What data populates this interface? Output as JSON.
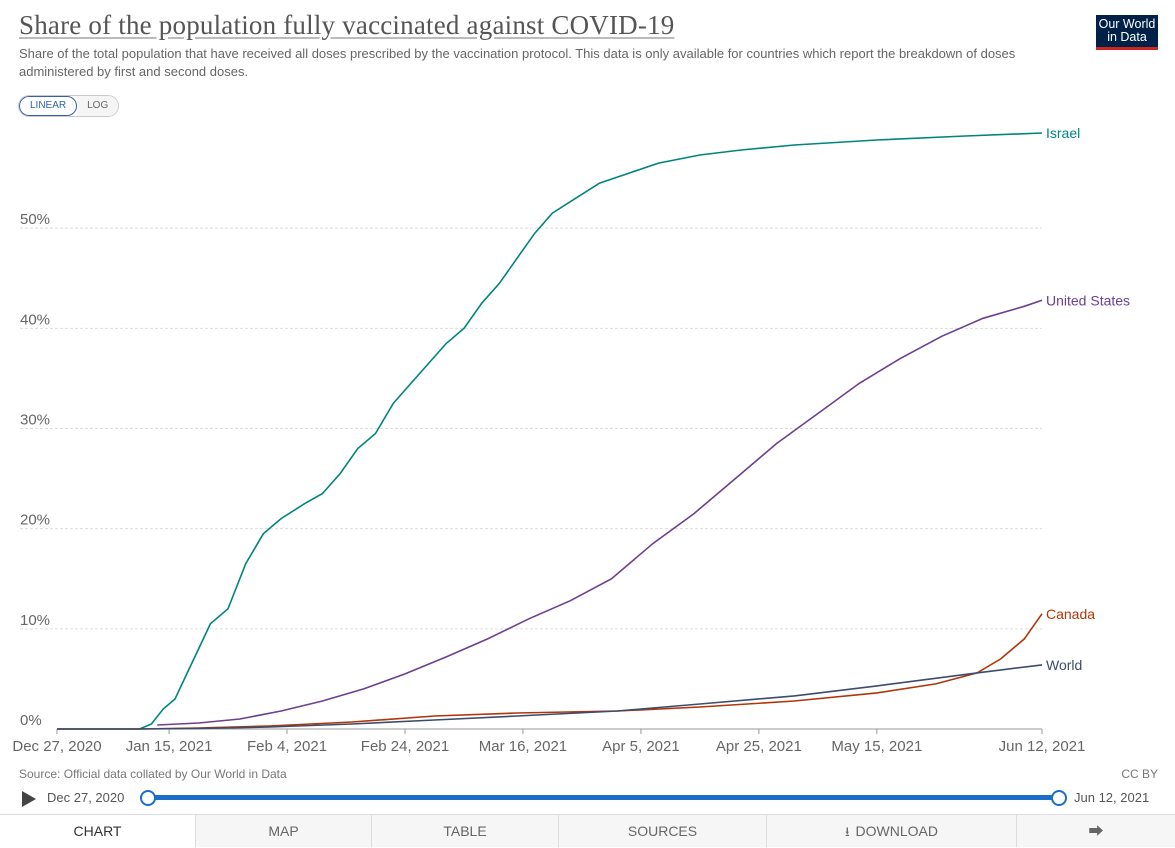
{
  "header": {
    "title": "Share of the population fully vaccinated against COVID-19",
    "subtitle": "Share of the total population that have received all doses prescribed by the vaccination protocol. This data is only available for countries which report the breakdown of doses administered by first and second doses.",
    "logo_line1": "Our World",
    "logo_line2": "in Data"
  },
  "controls": {
    "linear_label": "LINEAR",
    "log_label": "LOG",
    "selected": "LINEAR"
  },
  "footer": {
    "source": "Source: Official data collated by Our World in Data",
    "license": "CC BY"
  },
  "timeline": {
    "start_label": "Dec 27, 2020",
    "end_label": "Jun 12, 2021",
    "start_value": "Dec 27, 2020",
    "end_value": "Jun 12, 2021"
  },
  "tabs": [
    {
      "label": "CHART",
      "active": true
    },
    {
      "label": "MAP",
      "active": false
    },
    {
      "label": "TABLE",
      "active": false
    },
    {
      "label": "SOURCES",
      "active": false
    },
    {
      "label": "DOWNLOAD",
      "active": false,
      "icon": "download-icon"
    },
    {
      "label": "",
      "active": false,
      "icon": "share-icon"
    }
  ],
  "chart_data": {
    "type": "line",
    "title": "Share of the population fully vaccinated against COVID-19",
    "xlabel": "",
    "ylabel": "",
    "x_ticks": [
      "Dec 27, 2020",
      "Jan 15, 2021",
      "Feb 4, 2021",
      "Feb 24, 2021",
      "Mar 16, 2021",
      "Apr 5, 2021",
      "Apr 25, 2021",
      "May 15, 2021",
      "Jun 12, 2021"
    ],
    "y_ticks": [
      "0%",
      "10%",
      "20%",
      "30%",
      "40%",
      "50%"
    ],
    "y_tick_values": [
      0,
      10,
      20,
      30,
      40,
      50
    ],
    "xlim": [
      "2020-12-27",
      "2021-06-12"
    ],
    "ylim": [
      0,
      60
    ],
    "grid": "horizontal dashed",
    "legend": "line-end labels",
    "series": [
      {
        "name": "Israel",
        "color": "#00847e",
        "points": [
          [
            "2020-12-27",
            0
          ],
          [
            "2021-01-10",
            0
          ],
          [
            "2021-01-12",
            0.5
          ],
          [
            "2021-01-14",
            2
          ],
          [
            "2021-01-16",
            3
          ],
          [
            "2021-01-18",
            5.5
          ],
          [
            "2021-01-20",
            8
          ],
          [
            "2021-01-22",
            10.5
          ],
          [
            "2021-01-25",
            12
          ],
          [
            "2021-01-28",
            16.5
          ],
          [
            "2021-01-31",
            19.5
          ],
          [
            "2021-02-03",
            21
          ],
          [
            "2021-02-07",
            22.5
          ],
          [
            "2021-02-10",
            23.5
          ],
          [
            "2021-02-13",
            25.5
          ],
          [
            "2021-02-16",
            28
          ],
          [
            "2021-02-19",
            29.5
          ],
          [
            "2021-02-22",
            32.5
          ],
          [
            "2021-02-25",
            34.5
          ],
          [
            "2021-02-28",
            36.5
          ],
          [
            "2021-03-03",
            38.5
          ],
          [
            "2021-03-06",
            40
          ],
          [
            "2021-03-09",
            42.5
          ],
          [
            "2021-03-12",
            44.5
          ],
          [
            "2021-03-15",
            47
          ],
          [
            "2021-03-18",
            49.5
          ],
          [
            "2021-03-21",
            51.5
          ],
          [
            "2021-03-25",
            53
          ],
          [
            "2021-03-29",
            54.5
          ],
          [
            "2021-04-03",
            55.5
          ],
          [
            "2021-04-08",
            56.5
          ],
          [
            "2021-04-15",
            57.3
          ],
          [
            "2021-04-22",
            57.8
          ],
          [
            "2021-05-01",
            58.3
          ],
          [
            "2021-05-15",
            58.8
          ],
          [
            "2021-05-30",
            59.2
          ],
          [
            "2021-06-12",
            59.5
          ]
        ]
      },
      {
        "name": "United States",
        "color": "#6d3e91",
        "points": [
          [
            "2021-01-13",
            0.4
          ],
          [
            "2021-01-20",
            0.6
          ],
          [
            "2021-01-27",
            1
          ],
          [
            "2021-02-03",
            1.8
          ],
          [
            "2021-02-10",
            2.8
          ],
          [
            "2021-02-17",
            4
          ],
          [
            "2021-02-24",
            5.5
          ],
          [
            "2021-03-03",
            7.2
          ],
          [
            "2021-03-10",
            9
          ],
          [
            "2021-03-17",
            11
          ],
          [
            "2021-03-24",
            12.8
          ],
          [
            "2021-03-31",
            15
          ],
          [
            "2021-04-07",
            18.5
          ],
          [
            "2021-04-14",
            21.5
          ],
          [
            "2021-04-21",
            25
          ],
          [
            "2021-04-28",
            28.5
          ],
          [
            "2021-05-05",
            31.5
          ],
          [
            "2021-05-12",
            34.5
          ],
          [
            "2021-05-19",
            37
          ],
          [
            "2021-05-26",
            39.2
          ],
          [
            "2021-06-02",
            41
          ],
          [
            "2021-06-09",
            42.2
          ],
          [
            "2021-06-12",
            42.8
          ]
        ]
      },
      {
        "name": "Canada",
        "color": "#b13507",
        "points": [
          [
            "2020-12-27",
            0
          ],
          [
            "2021-01-10",
            0
          ],
          [
            "2021-01-20",
            0.1
          ],
          [
            "2021-02-01",
            0.3
          ],
          [
            "2021-02-15",
            0.7
          ],
          [
            "2021-03-01",
            1.3
          ],
          [
            "2021-03-15",
            1.6
          ],
          [
            "2021-04-01",
            1.8
          ],
          [
            "2021-04-15",
            2.2
          ],
          [
            "2021-05-01",
            2.8
          ],
          [
            "2021-05-15",
            3.6
          ],
          [
            "2021-05-25",
            4.5
          ],
          [
            "2021-06-01",
            5.6
          ],
          [
            "2021-06-05",
            7
          ],
          [
            "2021-06-09",
            9
          ],
          [
            "2021-06-12",
            11.5
          ]
        ]
      },
      {
        "name": "World",
        "color": "#3c4c6d",
        "points": [
          [
            "2020-12-27",
            0
          ],
          [
            "2021-01-10",
            0
          ],
          [
            "2021-01-20",
            0.05
          ],
          [
            "2021-02-01",
            0.2
          ],
          [
            "2021-02-15",
            0.5
          ],
          [
            "2021-03-01",
            0.9
          ],
          [
            "2021-03-15",
            1.3
          ],
          [
            "2021-04-01",
            1.8
          ],
          [
            "2021-04-15",
            2.5
          ],
          [
            "2021-05-01",
            3.3
          ],
          [
            "2021-05-15",
            4.3
          ],
          [
            "2021-06-01",
            5.6
          ],
          [
            "2021-06-12",
            6.4
          ]
        ]
      }
    ]
  }
}
